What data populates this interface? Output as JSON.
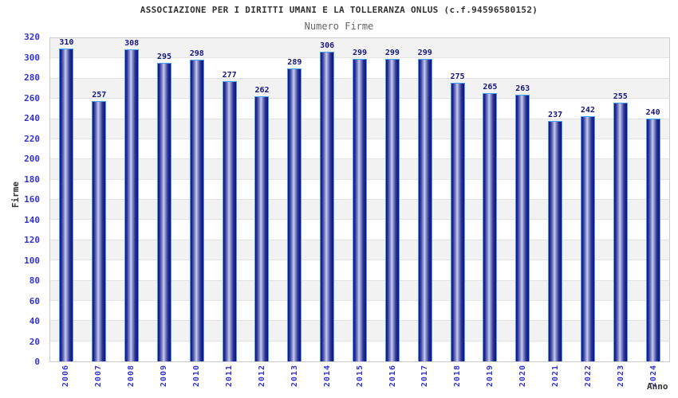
{
  "chart_data": {
    "type": "bar",
    "title": "ASSOCIAZIONE PER I DIRITTI UMANI E LA TOLLERANZA ONLUS (c.f.94596580152)",
    "subtitle": "Numero Firme",
    "xlabel": "Anno",
    "ylabel": "Firme",
    "categories": [
      "2006",
      "2007",
      "2008",
      "2009",
      "2010",
      "2011",
      "2012",
      "2013",
      "2014",
      "2015",
      "2016",
      "2017",
      "2018",
      "2019",
      "2020",
      "2021",
      "2022",
      "2023",
      "2024"
    ],
    "values": [
      310,
      257,
      308,
      295,
      298,
      277,
      262,
      289,
      306,
      299,
      299,
      299,
      275,
      265,
      263,
      237,
      242,
      255,
      240
    ],
    "ylim": [
      0,
      320
    ],
    "ytick_step": 20,
    "yticks": [
      0,
      20,
      40,
      60,
      80,
      100,
      120,
      140,
      160,
      180,
      200,
      220,
      240,
      260,
      280,
      300,
      320
    ],
    "grid": "alternating-horizontal-bands",
    "legend": "none"
  },
  "colors": {
    "title": "#333333",
    "subtitle": "#666666",
    "axis_title": "#333333",
    "axis_tick": "#3333cc",
    "value_label": "#16167e",
    "bar_outline": "#45a0f0",
    "bar_dark": "#10107a",
    "bar_highlight": "#c8cdec",
    "band_gray": "#f2f2f2",
    "band_white": "#ffffff",
    "grid_line": "#e3e3e3",
    "plot_border": "#cccccc"
  }
}
